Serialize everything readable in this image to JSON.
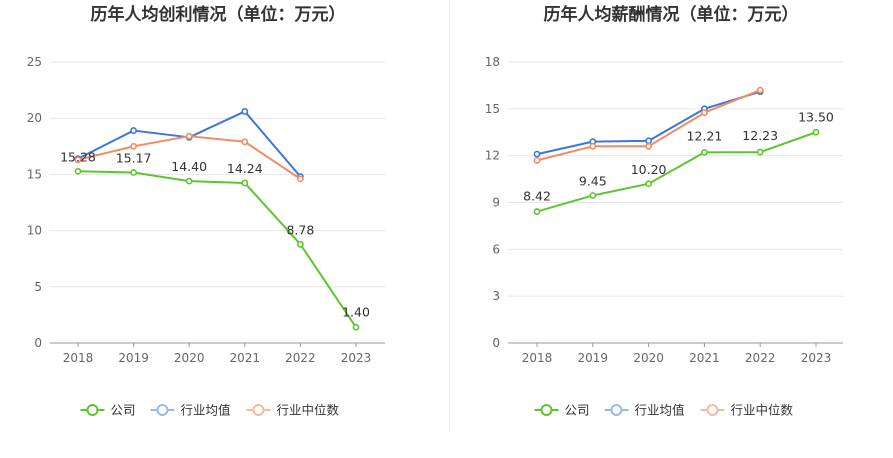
{
  "chart_data": [
    {
      "type": "line",
      "title": "历年人均创利情况（单位：万元）",
      "categories": [
        "2018",
        "2019",
        "2020",
        "2021",
        "2022",
        "2023"
      ],
      "ylim": [
        0,
        25
      ],
      "yticks": [
        0,
        5,
        10,
        15,
        20,
        25
      ],
      "grid": true,
      "legend_position": "bottom-center",
      "series": [
        {
          "name": "公司",
          "color": "#5ec52f",
          "values": [
            15.28,
            15.17,
            14.4,
            14.24,
            8.78,
            1.4
          ],
          "labels": [
            "15.28",
            "15.17",
            "14.40",
            "14.24",
            "8.78",
            "1.40"
          ]
        },
        {
          "name": "行业均值",
          "color": "#3c75de",
          "values": [
            16.4,
            18.9,
            18.3,
            20.6,
            14.8,
            null
          ]
        },
        {
          "name": "行业中位数",
          "color": "#f28b62",
          "values": [
            16.3,
            17.5,
            18.4,
            17.9,
            14.6,
            null
          ]
        }
      ]
    },
    {
      "type": "line",
      "title": "历年人均薪酬情况（单位：万元）",
      "categories": [
        "2018",
        "2019",
        "2020",
        "2021",
        "2022",
        "2023"
      ],
      "ylim": [
        0,
        18
      ],
      "yticks": [
        0,
        3,
        6,
        9,
        12,
        15,
        18
      ],
      "grid": true,
      "legend_position": "bottom-center",
      "series": [
        {
          "name": "公司",
          "color": "#5ec52f",
          "values": [
            8.42,
            9.45,
            10.2,
            12.21,
            12.23,
            13.5
          ],
          "labels": [
            "8.42",
            "9.45",
            "10.20",
            "12.21",
            "12.23",
            "13.50"
          ]
        },
        {
          "name": "行业均值",
          "color": "#3c75de",
          "values": [
            12.1,
            12.9,
            12.95,
            15.0,
            16.1,
            null
          ]
        },
        {
          "name": "行业中位数",
          "color": "#f28b62",
          "values": [
            11.7,
            12.6,
            12.6,
            14.75,
            16.2,
            null
          ]
        }
      ]
    }
  ]
}
